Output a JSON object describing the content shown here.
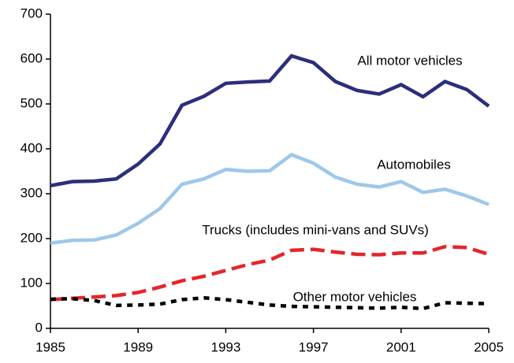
{
  "chart_data": {
    "type": "line",
    "x": [
      1985,
      1986,
      1987,
      1988,
      1989,
      1990,
      1991,
      1992,
      1993,
      1994,
      1995,
      1996,
      1997,
      1998,
      1999,
      2000,
      2001,
      2002,
      2003,
      2004,
      2005
    ],
    "series": [
      {
        "name": "All motor vehicles",
        "color": "#2b2e7b",
        "dash": "solid",
        "values": [
          318,
          327,
          328,
          333,
          366,
          411,
          497,
          517,
          546,
          549,
          551,
          607,
          592,
          550,
          530,
          522,
          543,
          516,
          550,
          532,
          495
        ]
      },
      {
        "name": "Automobiles",
        "color": "#9ec8ea",
        "dash": "solid",
        "values": [
          190,
          196,
          197,
          208,
          234,
          267,
          321,
          333,
          354,
          350,
          351,
          387,
          368,
          337,
          321,
          315,
          327,
          303,
          310,
          295,
          276
        ]
      },
      {
        "name": "Trucks (includes mini-vans and SUVs)",
        "color": "#e3262b",
        "dash": "dashed",
        "values": [
          64,
          67,
          70,
          73,
          80,
          92,
          106,
          116,
          129,
          142,
          152,
          174,
          176,
          170,
          165,
          164,
          168,
          168,
          182,
          180,
          165
        ]
      },
      {
        "name": "Other motor vehicles",
        "color": "#000000",
        "dash": "dotted",
        "values": [
          65,
          66,
          62,
          51,
          52,
          54,
          64,
          68,
          64,
          58,
          52,
          49,
          48,
          47,
          46,
          45,
          47,
          44,
          57,
          56,
          55
        ]
      }
    ],
    "xlim": [
      1985,
      2005
    ],
    "xticks": [
      1985,
      1989,
      1993,
      1997,
      2001,
      2005
    ],
    "ylim": [
      0,
      700
    ],
    "yticks": [
      0,
      100,
      200,
      300,
      400,
      500,
      600,
      700
    ]
  }
}
